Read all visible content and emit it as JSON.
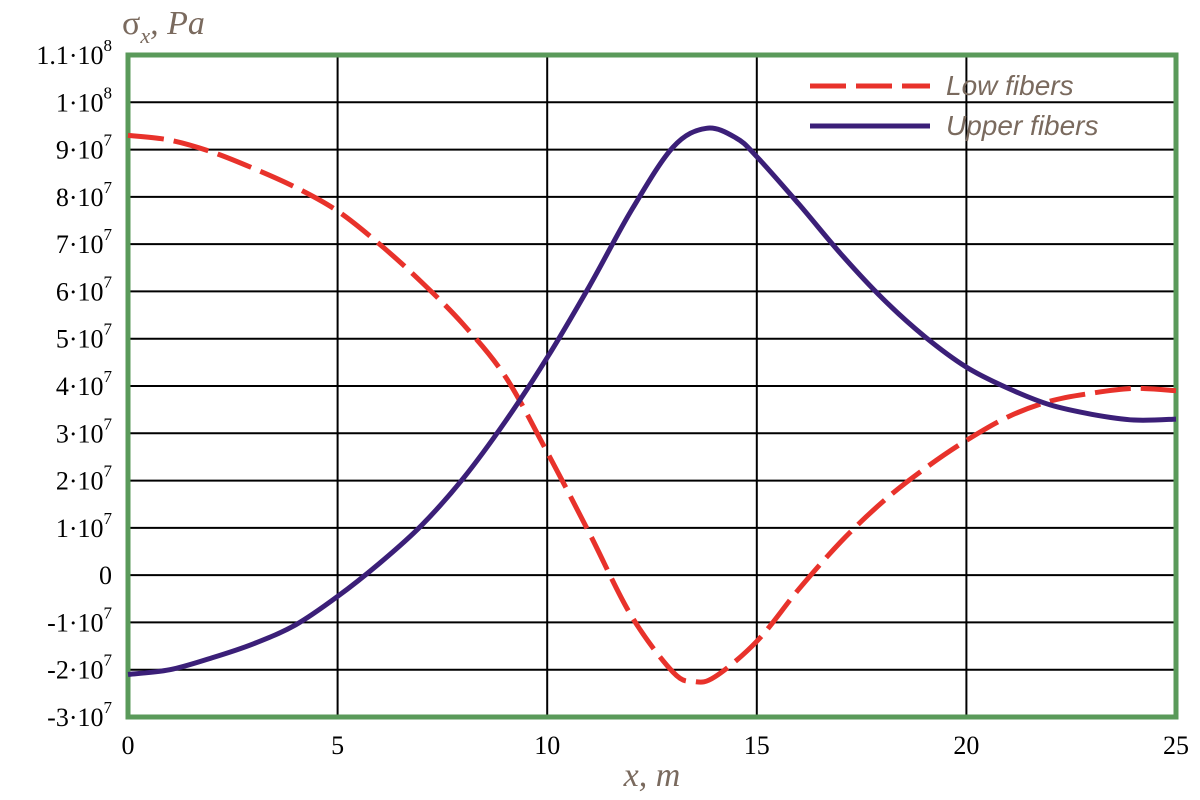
{
  "chart_data": {
    "type": "line",
    "ylabel": "σx , Pa",
    "ylabel_symbol": "σ",
    "ylabel_sub": "x",
    "ylabel_rest": ", Pa",
    "xlabel": "x, m",
    "xlim": [
      0,
      25
    ],
    "ylim": [
      -30000000,
      110000000
    ],
    "grid": true,
    "legend_placement": "top-right",
    "x_ticks": [
      {
        "value": 0,
        "label": "0"
      },
      {
        "value": 5,
        "label": "5"
      },
      {
        "value": 10,
        "label": "10"
      },
      {
        "value": 15,
        "label": "15"
      },
      {
        "value": 20,
        "label": "20"
      },
      {
        "value": 25,
        "label": "25"
      }
    ],
    "y_ticks": [
      {
        "value": 110000000,
        "mant": "1.1·10",
        "exp": "8"
      },
      {
        "value": 100000000,
        "mant": "1·10",
        "exp": "8"
      },
      {
        "value": 90000000,
        "mant": "9·10",
        "exp": "7"
      },
      {
        "value": 80000000,
        "mant": "8·10",
        "exp": "7"
      },
      {
        "value": 70000000,
        "mant": "7·10",
        "exp": "7"
      },
      {
        "value": 60000000,
        "mant": "6·10",
        "exp": "7"
      },
      {
        "value": 50000000,
        "mant": "5·10",
        "exp": "7"
      },
      {
        "value": 40000000,
        "mant": "4·10",
        "exp": "7"
      },
      {
        "value": 30000000,
        "mant": "3·10",
        "exp": "7"
      },
      {
        "value": 20000000,
        "mant": "2·10",
        "exp": "7"
      },
      {
        "value": 10000000,
        "mant": "1·10",
        "exp": "7"
      },
      {
        "value": 0,
        "mant": "0",
        "exp": ""
      },
      {
        "value": -10000000,
        "mant": "-1·10",
        "exp": "7"
      },
      {
        "value": -20000000,
        "mant": "-2·10",
        "exp": "7"
      },
      {
        "value": -30000000,
        "mant": "-3·10",
        "exp": "7"
      }
    ],
    "series": [
      {
        "name": "Low fibers",
        "color": "#e8322b",
        "style": "dashed",
        "x": [
          0,
          1,
          2,
          3,
          4,
          5,
          6,
          7,
          8,
          9,
          10,
          11,
          12,
          13,
          13.5,
          14,
          15,
          16,
          17,
          18,
          19,
          20,
          21,
          22,
          23,
          24,
          25
        ],
        "y": [
          93000000,
          92000000,
          89500000,
          86000000,
          82000000,
          77000000,
          70000000,
          62000000,
          53000000,
          42000000,
          26000000,
          9000000,
          -8500000,
          -20500000,
          -22500000,
          -21500000,
          -14000000,
          -3000000,
          7000000,
          15500000,
          22500000,
          28500000,
          33500000,
          36800000,
          38500000,
          39500000,
          39000000
        ]
      },
      {
        "name": "Upper fibers",
        "color": "#3b1f78",
        "style": "solid",
        "x": [
          0,
          1,
          2,
          3,
          4,
          5,
          6,
          7,
          8,
          9,
          10,
          11,
          12,
          13,
          13.8,
          14.5,
          15,
          16,
          17,
          18,
          19,
          20,
          21,
          22,
          23,
          24,
          25
        ],
        "y": [
          -21000000,
          -20000000,
          -17500000,
          -14500000,
          -10500000,
          -4500000,
          2500000,
          10500000,
          20500000,
          32500000,
          46000000,
          61000000,
          77000000,
          90500000,
          94500000,
          92500000,
          88500000,
          78500000,
          68000000,
          58500000,
          50500000,
          44000000,
          39500000,
          36000000,
          34000000,
          32800000,
          33000000
        ]
      }
    ]
  }
}
